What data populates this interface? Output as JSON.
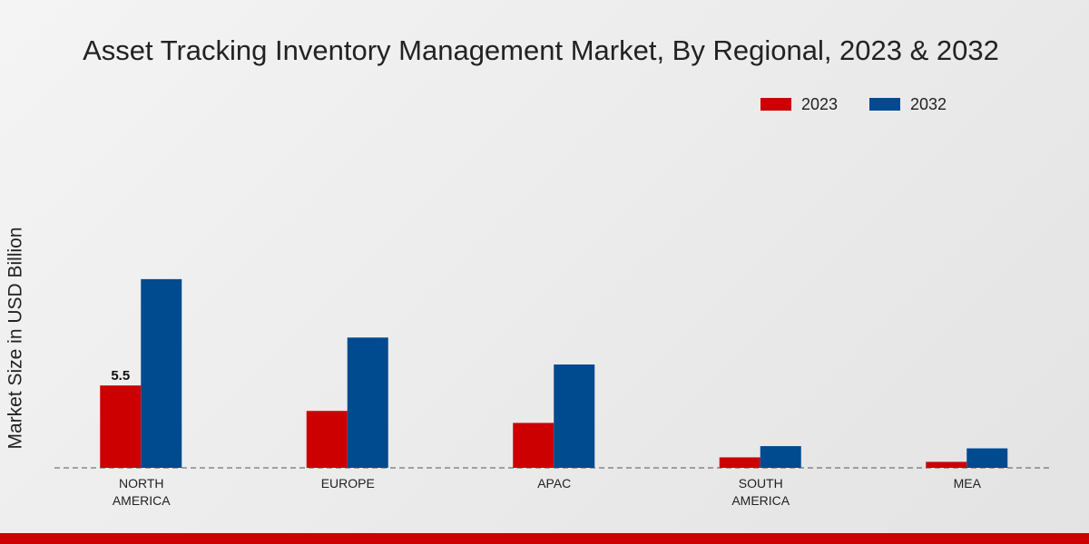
{
  "chart_data": {
    "type": "bar",
    "title": "Asset Tracking Inventory Management Market, By Regional, 2023 & 2032",
    "y_label": "Market Size in USD Billion",
    "categories": [
      "NORTH\nAMERICA",
      "EUROPE",
      "APAC",
      "SOUTH\nAMERICA",
      "MEA"
    ],
    "series": [
      {
        "name": "2023",
        "color": "#cc0000",
        "values": [
          5.5,
          3.8,
          3.0,
          0.7,
          0.4
        ],
        "value_labels": [
          "5.5",
          null,
          null,
          null,
          null
        ]
      },
      {
        "name": "2032",
        "color": "#004a8f",
        "values": [
          12.6,
          8.7,
          6.9,
          1.45,
          1.3
        ]
      }
    ],
    "ylim": [
      0,
      13.5
    ]
  }
}
